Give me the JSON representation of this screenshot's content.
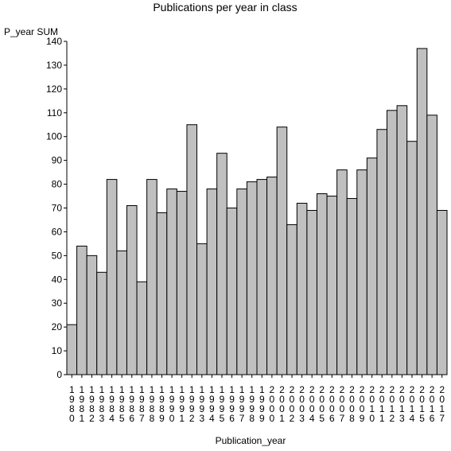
{
  "chart_data": {
    "type": "bar",
    "title": "Publications per year in class",
    "ylabel": "P_year SUM",
    "xlabel": "Publication_year",
    "categories": [
      "1980",
      "1981",
      "1982",
      "1983",
      "1984",
      "1985",
      "1986",
      "1987",
      "1988",
      "1989",
      "1990",
      "1991",
      "1992",
      "1993",
      "1994",
      "1995",
      "1996",
      "1997",
      "1998",
      "1999",
      "2000",
      "2001",
      "2002",
      "2003",
      "2004",
      "2005",
      "2006",
      "2007",
      "2008",
      "2009",
      "2010",
      "2011",
      "2012",
      "2013",
      "2014",
      "2015",
      "2016",
      "2017"
    ],
    "values": [
      21,
      54,
      50,
      43,
      82,
      52,
      71,
      39,
      82,
      68,
      78,
      77,
      105,
      55,
      78,
      93,
      70,
      78,
      81,
      82,
      83,
      104,
      63,
      72,
      69,
      76,
      75,
      86,
      74,
      86,
      91,
      103,
      111,
      113,
      98,
      137,
      109,
      69
    ],
    "ylim": [
      0,
      140
    ],
    "yticks": [
      0,
      10,
      20,
      30,
      40,
      50,
      60,
      70,
      80,
      90,
      100,
      110,
      120,
      130,
      140
    ],
    "bar_color": "#c0c0c0",
    "bar_edge_color": "#000000",
    "grid": false,
    "legend": "none"
  }
}
